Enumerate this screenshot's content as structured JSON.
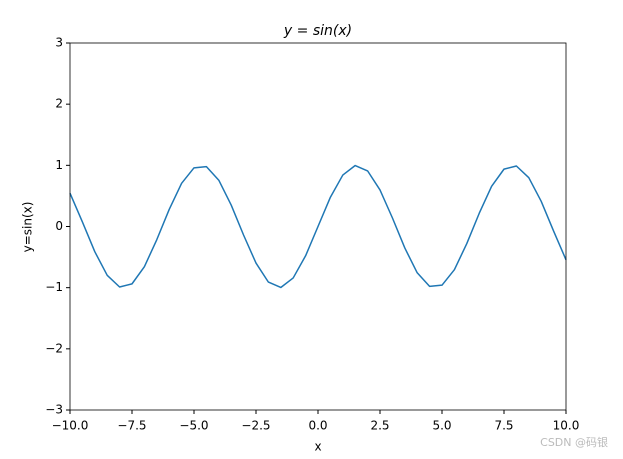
{
  "chart_data": {
    "type": "line",
    "title": "y = sin(x)",
    "xlabel": "x",
    "ylabel": "y=sin(x)",
    "watermark": "CSDN @码银",
    "x": [
      -10,
      -9.5,
      -9,
      -8.5,
      -8,
      -7.5,
      -7,
      -6.5,
      -6,
      -5.5,
      -5,
      -4.5,
      -4,
      -3.5,
      -3,
      -2.5,
      -2,
      -1.5,
      -1,
      -0.5,
      0,
      0.5,
      1,
      1.5,
      2,
      2.5,
      3,
      3.5,
      4,
      4.5,
      5,
      5.5,
      6,
      6.5,
      7,
      7.5,
      8,
      8.5,
      9,
      9.5,
      10
    ],
    "series": [
      {
        "color": "#1f77b4",
        "values": [
          0.544,
          0.075,
          -0.412,
          -0.798,
          -0.989,
          -0.938,
          -0.657,
          -0.215,
          0.279,
          0.706,
          0.959,
          0.978,
          0.757,
          0.351,
          -0.141,
          -0.598,
          -0.909,
          -0.997,
          -0.841,
          -0.479,
          0,
          0.479,
          0.841,
          0.997,
          0.909,
          0.598,
          0.141,
          -0.351,
          -0.757,
          -0.978,
          -0.959,
          -0.706,
          -0.279,
          0.215,
          0.657,
          0.938,
          0.989,
          0.798,
          0.412,
          -0.075,
          -0.544
        ]
      }
    ],
    "xlim": [
      -10,
      10
    ],
    "ylim": [
      -3,
      3
    ],
    "xticks": [
      {
        "value": -10,
        "label": "−10.0"
      },
      {
        "value": -7.5,
        "label": "−7.5"
      },
      {
        "value": -5,
        "label": "−5.0"
      },
      {
        "value": -2.5,
        "label": "−2.5"
      },
      {
        "value": 0,
        "label": "0.0"
      },
      2.5,
      {
        "value": 5,
        "label": "5.0"
      },
      7.5,
      {
        "value": 10,
        "label": "10.0"
      }
    ],
    "yticks": [
      {
        "value": -3,
        "label": "−3"
      },
      {
        "value": -2,
        "label": "−2"
      },
      {
        "value": -1,
        "label": "−1"
      },
      0,
      1,
      2,
      3
    ],
    "grid": false
  }
}
